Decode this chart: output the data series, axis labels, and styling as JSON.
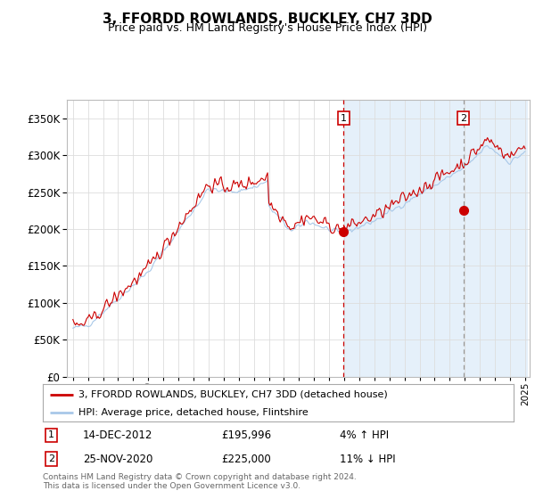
{
  "title": "3, FFORDD ROWLANDS, BUCKLEY, CH7 3DD",
  "subtitle": "Price paid vs. HM Land Registry's House Price Index (HPI)",
  "legend_line1": "3, FFORDD ROWLANDS, BUCKLEY, CH7 3DD (detached house)",
  "legend_line2": "HPI: Average price, detached house, Flintshire",
  "annotation1_date": "14-DEC-2012",
  "annotation1_price": 195996,
  "annotation1_hpi_pct": "4% ↑ HPI",
  "annotation2_date": "25-NOV-2020",
  "annotation2_price": 225000,
  "annotation2_hpi_pct": "11% ↓ HPI",
  "footer": "Contains HM Land Registry data © Crown copyright and database right 2024.\nThis data is licensed under the Open Government Licence v3.0.",
  "hpi_color": "#a8c8e8",
  "price_color": "#cc0000",
  "bg_color": "#daeaf8",
  "vline1_color": "#cc0000",
  "vline2_color": "#999999",
  "annotation_box_color": "#cc0000",
  "ylim": [
    0,
    375000
  ],
  "yticks": [
    0,
    50000,
    100000,
    150000,
    200000,
    250000,
    300000,
    350000
  ],
  "sale1_year": 2012.96,
  "sale2_year": 2020.9
}
